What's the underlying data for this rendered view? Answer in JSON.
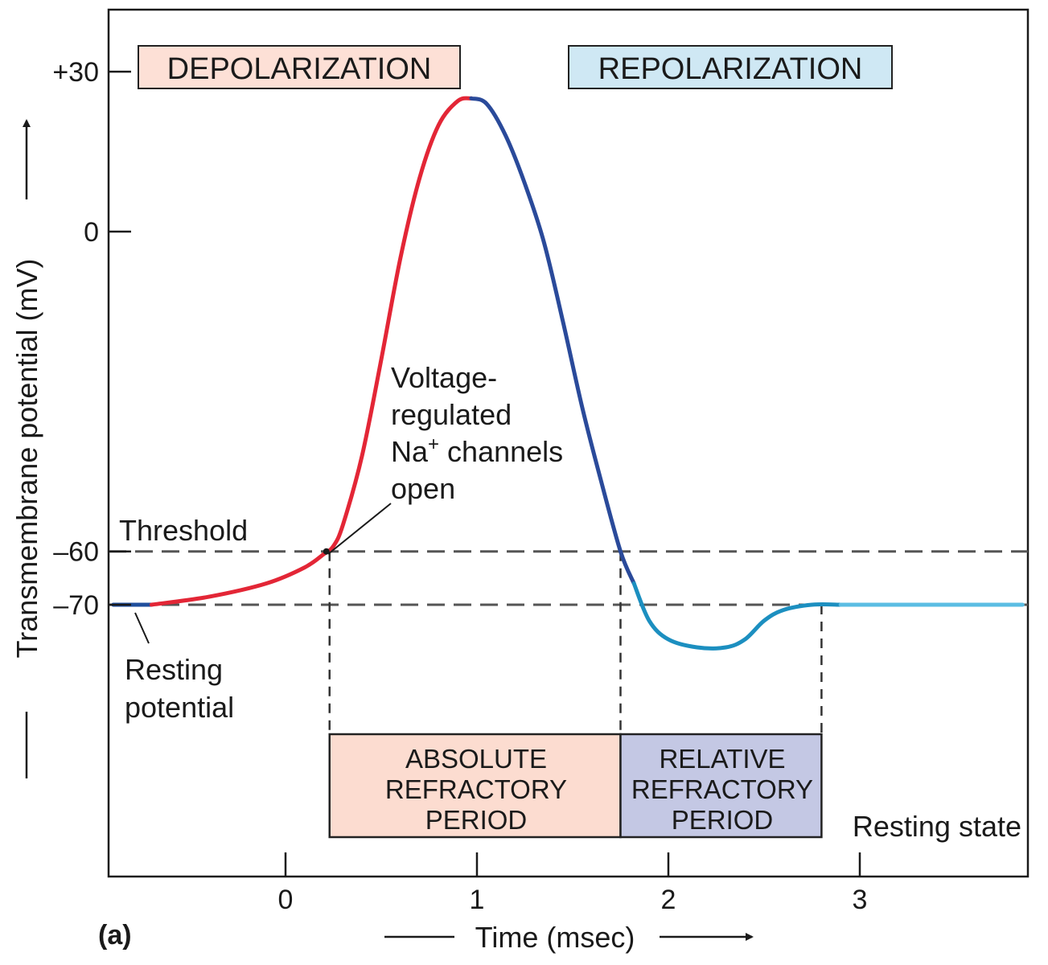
{
  "panel_label": "(a)",
  "chart_data": {
    "type": "line",
    "title": "",
    "xlabel": "Time (msec)",
    "ylabel": "Transmembrane potential (mV)",
    "xlim": [
      -0.9,
      3.85
    ],
    "ylim": [
      -100,
      42
    ],
    "x_ticks": [
      0,
      1,
      2,
      3
    ],
    "y_ticks": [
      {
        "value": 30,
        "label": "+30"
      },
      {
        "value": 0,
        "label": "0"
      },
      {
        "value": -60,
        "label": "–60"
      },
      {
        "value": -70,
        "label": "–70"
      }
    ],
    "grid": false,
    "reference_lines": [
      {
        "axis": "y",
        "value": -60,
        "style": "dashed",
        "label": "Threshold"
      },
      {
        "axis": "y",
        "value": -70,
        "style": "dashed"
      }
    ],
    "vertical_markers": [
      0.23,
      1.75,
      2.8
    ],
    "series": [
      {
        "phase": "resting",
        "color": "#1f4e9c",
        "points": [
          [
            -0.9,
            -70
          ],
          [
            -0.7,
            -70
          ]
        ]
      },
      {
        "phase": "depolarization",
        "color": "#e32636",
        "points": [
          [
            -0.7,
            -70
          ],
          [
            -0.4,
            -68.5
          ],
          [
            -0.1,
            -66
          ],
          [
            0.1,
            -63
          ],
          [
            0.2,
            -60.5
          ],
          [
            0.25,
            -59
          ],
          [
            0.3,
            -55
          ],
          [
            0.4,
            -42
          ],
          [
            0.5,
            -24
          ],
          [
            0.6,
            -5
          ],
          [
            0.7,
            10
          ],
          [
            0.8,
            20
          ],
          [
            0.9,
            24.5
          ],
          [
            0.97,
            25
          ]
        ]
      },
      {
        "phase": "repolarization",
        "color": "#2a4a9a",
        "points": [
          [
            0.97,
            25
          ],
          [
            1.05,
            24
          ],
          [
            1.15,
            18
          ],
          [
            1.25,
            9
          ],
          [
            1.35,
            -2
          ],
          [
            1.45,
            -17
          ],
          [
            1.55,
            -33
          ],
          [
            1.65,
            -47
          ],
          [
            1.75,
            -60
          ],
          [
            1.82,
            -66
          ]
        ]
      },
      {
        "phase": "after-hyperpolarization",
        "color": "#1c8fc0",
        "points": [
          [
            1.82,
            -66
          ],
          [
            1.9,
            -73
          ],
          [
            2.0,
            -76.5
          ],
          [
            2.15,
            -78
          ],
          [
            2.3,
            -78
          ],
          [
            2.4,
            -76.5
          ],
          [
            2.5,
            -73
          ],
          [
            2.6,
            -71
          ],
          [
            2.75,
            -70
          ],
          [
            2.9,
            -70
          ]
        ]
      },
      {
        "phase": "resting-state",
        "color": "#5bbde3",
        "points": [
          [
            2.9,
            -70
          ],
          [
            3.85,
            -70
          ]
        ]
      }
    ],
    "phase_labels": [
      {
        "text": "DEPOLARIZATION",
        "color": "#fde0d6"
      },
      {
        "text": "REPOLARIZATION",
        "color": "#cfe8f4"
      }
    ],
    "periods": [
      {
        "lines": [
          "ABSOLUTE",
          "REFRACTORY",
          "PERIOD"
        ],
        "x_start": 0.23,
        "x_end": 1.75,
        "color": "#fcdcd0"
      },
      {
        "lines": [
          "RELATIVE",
          "REFRACTORY",
          "PERIOD"
        ],
        "x_start": 1.75,
        "x_end": 2.8,
        "color": "#c4c8e4"
      }
    ],
    "annotations": {
      "threshold": "Threshold",
      "resting_potential": [
        "Resting",
        "potential"
      ],
      "na_channels": [
        "Voltage-",
        "regulated",
        "Na",
        "+",
        " channels",
        "open"
      ],
      "resting_state": "Resting state"
    }
  }
}
